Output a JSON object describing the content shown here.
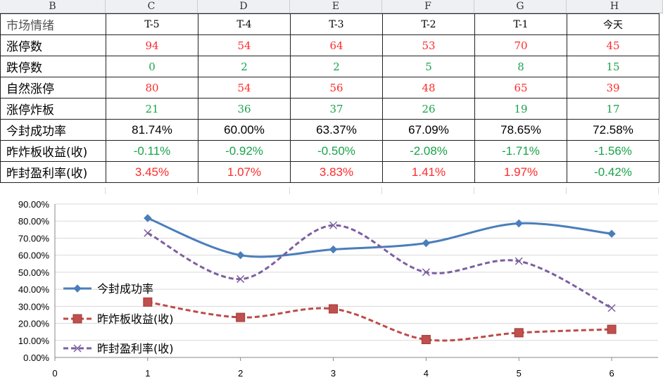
{
  "column_headers": [
    "B",
    "C",
    "D",
    "E",
    "F",
    "G",
    "H"
  ],
  "table": {
    "header_row": {
      "label": "市场情绪",
      "cols": [
        "T-5",
        "T-4",
        "T-3",
        "T-2",
        "T-1",
        "今天"
      ]
    },
    "rows": [
      {
        "label": "涨停数",
        "values": [
          "94",
          "54",
          "64",
          "53",
          "70",
          "45"
        ],
        "colors": [
          "red",
          "red",
          "red",
          "red",
          "red",
          "red"
        ],
        "kind": "v"
      },
      {
        "label": "跌停数",
        "values": [
          "0",
          "2",
          "2",
          "5",
          "8",
          "15"
        ],
        "colors": [
          "green",
          "green",
          "green",
          "green",
          "green",
          "green"
        ],
        "kind": "v"
      },
      {
        "label": "自然涨停",
        "values": [
          "80",
          "54",
          "56",
          "48",
          "65",
          "39"
        ],
        "colors": [
          "red",
          "red",
          "red",
          "red",
          "red",
          "red"
        ],
        "kind": "v"
      },
      {
        "label": "涨停炸板",
        "values": [
          "21",
          "36",
          "37",
          "26",
          "19",
          "17"
        ],
        "colors": [
          "green",
          "green",
          "green",
          "green",
          "green",
          "green"
        ],
        "kind": "v"
      },
      {
        "label": "今封成功率",
        "values": [
          "81.74%",
          "60.00%",
          "63.37%",
          "67.09%",
          "78.65%",
          "72.58%"
        ],
        "colors": [
          "black",
          "black",
          "black",
          "black",
          "black",
          "black"
        ],
        "kind": "p"
      },
      {
        "label": "昨炸板收益(收)",
        "values": [
          "-0.11%",
          "-0.92%",
          "-0.50%",
          "-2.08%",
          "-1.71%",
          "-1.56%"
        ],
        "colors": [
          "green",
          "green",
          "green",
          "green",
          "green",
          "green"
        ],
        "kind": "p"
      },
      {
        "label": "昨封盈利率(收)",
        "values": [
          "3.45%",
          "1.07%",
          "3.83%",
          "1.41%",
          "1.97%",
          "-0.42%"
        ],
        "colors": [
          "red",
          "red",
          "red",
          "red",
          "red",
          "green"
        ],
        "kind": "p"
      }
    ]
  },
  "chart_data": {
    "type": "line",
    "x": [
      1,
      2,
      3,
      4,
      5,
      6
    ],
    "xlim": [
      0,
      6.5
    ],
    "ylim": [
      0,
      90
    ],
    "x_ticks": [
      "0",
      "1",
      "2",
      "3",
      "4",
      "5",
      "6"
    ],
    "y_ticks": [
      "0.00%",
      "10.00%",
      "20.00%",
      "30.00%",
      "40.00%",
      "50.00%",
      "60.00%",
      "70.00%",
      "80.00%",
      "90.00%"
    ],
    "grid": true,
    "legend_position": "left",
    "series": [
      {
        "name": "今封成功率",
        "values": [
          81.74,
          60.0,
          63.37,
          67.09,
          78.65,
          72.58
        ],
        "color": "#4a7ebb",
        "marker": "diamond",
        "dash": "solid"
      },
      {
        "name": "昨炸板收益(收)",
        "values": [
          32.5,
          23.5,
          28.5,
          10.5,
          14.5,
          16.5
        ],
        "color": "#be4b48",
        "marker": "square",
        "dash": "dash"
      },
      {
        "name": "昨封盈利率(收)",
        "values": [
          73.0,
          46.0,
          77.5,
          50.0,
          56.5,
          29.0
        ],
        "color": "#7d5fa0",
        "marker": "x",
        "dash": "dash"
      }
    ]
  }
}
